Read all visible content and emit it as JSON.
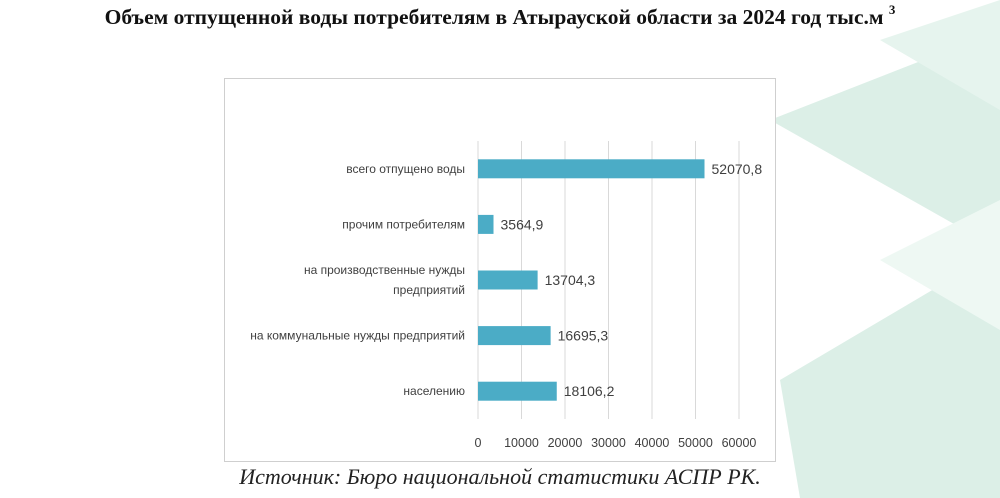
{
  "title": {
    "text": "Объем отпущенной воды потребителям в Атырауской области за 2024 год тыс.м",
    "superscript": "3"
  },
  "source": "Источник: Бюро национальной статистики АСПР РК.",
  "colors": {
    "bar": "#4bacc6",
    "grid": "#d9d9d9",
    "label": "#404040",
    "decor": "#dcefe7"
  },
  "chart_data": {
    "type": "bar",
    "orientation": "horizontal",
    "categories": [
      "всего отпущено воды",
      "прочим потребителям",
      "на производственные нужды предприятий",
      "на коммунальные нужды предприятий",
      "населению"
    ],
    "category_lines": [
      [
        "всего отпущено воды"
      ],
      [
        "прочим потребителям"
      ],
      [
        "на производственные нужды",
        "предприятий"
      ],
      [
        "на коммунальные нужды предприятий"
      ],
      [
        "населению"
      ]
    ],
    "values": [
      52070.8,
      3564.9,
      13704.3,
      16695.3,
      18106.2
    ],
    "value_labels": [
      "52070,8",
      "3564,9",
      "13704,3",
      "16695,3",
      "18106,2"
    ],
    "xlim": [
      0,
      60000
    ],
    "xticks": [
      0,
      10000,
      20000,
      30000,
      40000,
      50000,
      60000
    ],
    "xtick_labels": [
      "0",
      "10000",
      "20000",
      "30000",
      "40000",
      "50000",
      "60000"
    ],
    "grid": true
  }
}
